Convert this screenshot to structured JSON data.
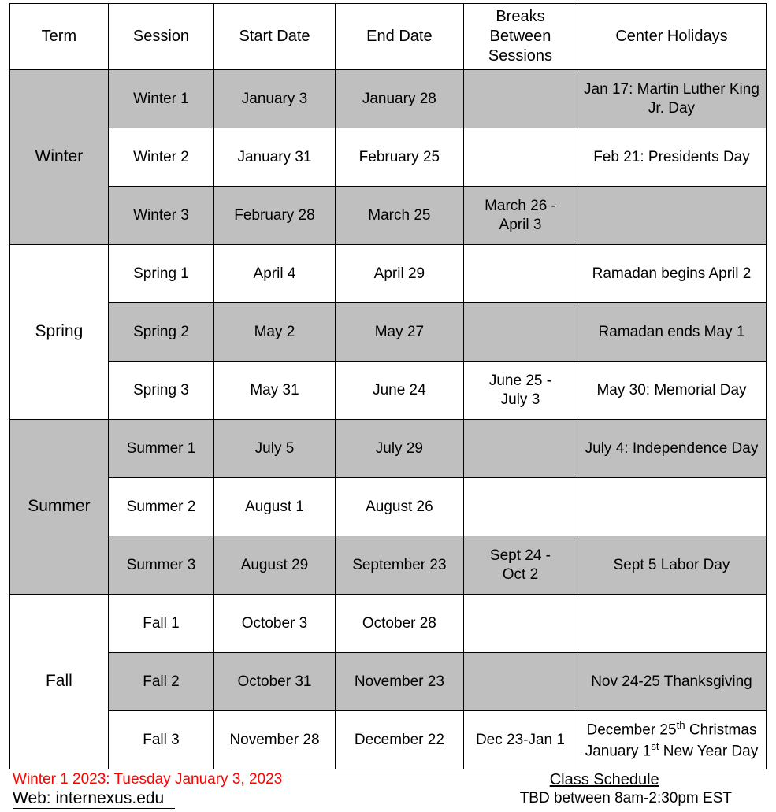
{
  "columns": [
    "Term",
    "Session",
    "Start Date",
    "End Date",
    "Breaks Between Sessions",
    "Center Holidays"
  ],
  "column_widths": [
    "13%",
    "14%",
    "16%",
    "17%",
    "15%",
    "25%"
  ],
  "terms": [
    {
      "name": "Winter",
      "term_bg": "#bfbfbf",
      "rows": [
        {
          "shaded": true,
          "session": "Winter 1",
          "start": "January 3",
          "end": "January 28",
          "break": "",
          "holiday": "Jan 17: Martin Luther King Jr. Day"
        },
        {
          "shaded": false,
          "session": "Winter 2",
          "start": "January 31",
          "end": "February 25",
          "break": "",
          "holiday": "Feb 21: Presidents Day"
        },
        {
          "shaded": true,
          "session": "Winter 3",
          "start": "February 28",
          "end": "March 25",
          "break": "March 26 - April 3",
          "holiday": ""
        }
      ]
    },
    {
      "name": "Spring",
      "term_bg": "#ffffff",
      "rows": [
        {
          "shaded": false,
          "session": "Spring 1",
          "start": "April 4",
          "end": "April 29",
          "break": "",
          "holiday": "Ramadan begins April 2"
        },
        {
          "shaded": true,
          "session": "Spring 2",
          "start": "May 2",
          "end": "May 27",
          "break": "",
          "holiday": "Ramadan ends May 1"
        },
        {
          "shaded": false,
          "session": "Spring 3",
          "start": "May 31",
          "end": "June 24",
          "break": "June 25 - July 3",
          "holiday": "May 30: Memorial Day"
        }
      ]
    },
    {
      "name": "Summer",
      "term_bg": "#bfbfbf",
      "rows": [
        {
          "shaded": true,
          "session": "Summer 1",
          "start": "July 5",
          "end": "July 29",
          "break": "",
          "holiday": "July 4: Independence Day"
        },
        {
          "shaded": false,
          "session": "Summer 2",
          "start": "August 1",
          "end": "August 26",
          "break": "",
          "holiday": ""
        },
        {
          "shaded": true,
          "session": "Summer 3",
          "start": "August 29",
          "end": "September 23",
          "break": "Sept 24 - Oct 2",
          "holiday": "Sept 5 Labor Day"
        }
      ]
    },
    {
      "name": "Fall",
      "term_bg": "#ffffff",
      "rows": [
        {
          "shaded": false,
          "session": "Fall 1",
          "start": "October 3",
          "end": "October 28",
          "break": "",
          "holiday": ""
        },
        {
          "shaded": true,
          "session": "Fall 2",
          "start": "October 31",
          "end": "November 23",
          "break": "",
          "holiday": "Nov 24-25 Thanksgiving"
        },
        {
          "shaded": false,
          "session": "Fall 3",
          "start": "November 28",
          "end": "December 22",
          "break": "Dec 23-Jan 1",
          "holiday_html": "December 25<sup>th</sup> Christmas<br>January 1<sup>st</sup> New Year Day"
        }
      ]
    }
  ],
  "footer": {
    "red_note": "Winter 1 2023: Tuesday January 3, 2023",
    "web_label": "Web: internexus.edu",
    "class_schedule_title": "Class Schedule",
    "class_schedule_body": "TBD between 8am-2:30pm EST"
  },
  "colors": {
    "shaded_bg": "#bfbfbf",
    "unshaded_bg": "#ffffff",
    "border": "#000000",
    "red_text": "#ff0000"
  }
}
